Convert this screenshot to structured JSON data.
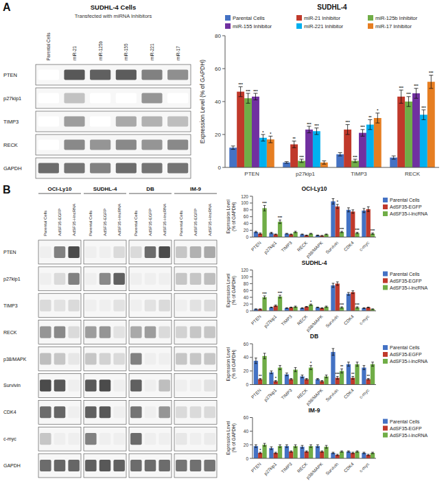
{
  "chart_data": [
    {
      "type": "heatmap",
      "title": "SUDHL-4 Cells",
      "subtitle": "Transfected with miRNA Inhibitors",
      "annotations": [
        "A"
      ],
      "rows": [
        "PTEN",
        "p27kip1",
        "TIMP3",
        "RECK",
        "GAPDH"
      ],
      "columns": [
        "Parental Cells",
        "miR-21",
        "miR-125b",
        "miR-155",
        "miR-221",
        "miR-17"
      ],
      "cells": [
        [
          0.0,
          0.82,
          0.78,
          0.8,
          0.62,
          0.55
        ],
        [
          0.0,
          0.3,
          0.0,
          0.0,
          0.52,
          0.0
        ],
        [
          0.0,
          0.48,
          0.0,
          0.42,
          0.38,
          0.32
        ],
        [
          0.0,
          0.58,
          0.52,
          0.58,
          0.52,
          0.58
        ],
        [
          0.72,
          0.68,
          0.62,
          0.72,
          0.68,
          0.68
        ]
      ]
    },
    {
      "type": "bar",
      "title": "SUDHL-4",
      "y_label": "Expression Level (% of GAPDH)",
      "categories": [
        "PTEN",
        "p27kip1",
        "TIMP3",
        "RECK"
      ],
      "series": [
        {
          "name": "Parental Cells",
          "color": "#4472c4",
          "values": [
            12,
            3,
            8,
            6
          ],
          "errors": [
            1,
            0.5,
            1,
            1
          ]
        },
        {
          "name": "miR-21 Inhibitor",
          "color": "#c0392b",
          "values": [
            46,
            14,
            23,
            43
          ],
          "errors": [
            3,
            2,
            3,
            4
          ],
          "annotations": [
            "***",
            "**",
            "***",
            "***"
          ]
        },
        {
          "name": "miR-125b Inhibitor",
          "color": "#70ad47",
          "values": [
            42,
            4,
            4,
            40
          ],
          "errors": [
            3,
            1,
            1,
            3
          ],
          "annotations": [
            "***",
            "***",
            "***",
            "***"
          ]
        },
        {
          "name": "miR-155 Inhibitor",
          "color": "#7030a0",
          "values": [
            43,
            23,
            21,
            45
          ],
          "errors": [
            2,
            2,
            2,
            3
          ],
          "annotations": [
            "***",
            "***",
            "***",
            "***"
          ]
        },
        {
          "name": "miR-221 Inhibitor",
          "color": "#00b0f0",
          "values": [
            18,
            22,
            26,
            32
          ],
          "errors": [
            2,
            2,
            3,
            3
          ],
          "annotations": [
            "*",
            "***",
            "**",
            "***"
          ]
        },
        {
          "name": "miR-17 Inhibitor",
          "color": "#e67e22",
          "values": [
            17,
            3,
            30,
            52
          ],
          "errors": [
            2,
            1,
            3,
            4
          ],
          "annotations": [
            "*",
            null,
            "*",
            "***"
          ]
        }
      ],
      "ylim": [
        0,
        80
      ],
      "yticks": [
        0,
        20,
        40,
        60,
        80
      ],
      "legend": "upper left",
      "grid": false
    },
    {
      "type": "heatmap",
      "annotations": [
        "B"
      ],
      "column_groups": [
        "OCI-Ly10",
        "SUDHL-4",
        "DB",
        "IM-9"
      ],
      "columns": [
        "Parental Cells",
        "AdSF35-EGFP",
        "AdSF35-i-lncRNA"
      ],
      "rows": [
        "PTEN",
        "p27kip1",
        "TIMP3",
        "RECK",
        "p38/MAPK",
        "Survivin",
        "CDK4",
        "c-myc",
        "GAPDH"
      ],
      "cells": [
        [
          [
            0.08,
            0.62,
            0.88
          ],
          [
            0.08,
            0.08,
            0.18
          ],
          [
            0.18,
            0.72,
            0.88
          ],
          [
            0.28,
            0.38,
            0.42
          ]
        ],
        [
          [
            0.08,
            0.18,
            0.62
          ],
          [
            0.08,
            0.58,
            0.78
          ],
          [
            0.08,
            0.08,
            0.08
          ],
          [
            0.28,
            0.28,
            0.32
          ]
        ],
        [
          [
            0.18,
            0.14,
            0.18
          ],
          [
            0.08,
            0.08,
            0.14
          ],
          [
            0.08,
            0.14,
            0.18
          ],
          [
            0.08,
            0.14,
            0.18
          ]
        ],
        [
          [
            0.52,
            0.58,
            0.18
          ],
          [
            0.48,
            0.52,
            0.14
          ],
          [
            0.42,
            0.48,
            0.18
          ],
          [
            0.22,
            0.28,
            0.28
          ]
        ],
        [
          [
            0.32,
            0.28,
            0.12
          ],
          [
            0.28,
            0.22,
            0.18
          ],
          [
            0.62,
            0.08,
            0.08
          ],
          [
            0.28,
            0.28,
            0.28
          ]
        ],
        [
          [
            0.88,
            0.82,
            0.08
          ],
          [
            0.82,
            0.88,
            0.08
          ],
          [
            0.78,
            0.08,
            0.32
          ],
          [
            0.08,
            0.08,
            0.14
          ]
        ],
        [
          [
            0.72,
            0.75,
            0.08
          ],
          [
            0.78,
            0.82,
            0.08
          ],
          [
            0.68,
            0.08,
            0.52
          ],
          [
            0.18,
            0.18,
            0.18
          ]
        ],
        [
          [
            0.28,
            0.08,
            0.08
          ],
          [
            0.62,
            0.08,
            0.08
          ],
          [
            0.72,
            0.08,
            0.08
          ],
          [
            0.12,
            0.08,
            0.1
          ]
        ],
        [
          [
            0.72,
            0.75,
            0.75
          ],
          [
            0.78,
            0.82,
            0.78
          ],
          [
            0.72,
            0.72,
            0.72
          ],
          [
            0.68,
            0.7,
            0.68
          ]
        ]
      ]
    },
    {
      "type": "bar",
      "title": "OCI-Ly10",
      "y_label": "Expression Level\n(% of GAPDH)",
      "categories": [
        "PTEN",
        "p27kip1",
        "TIMP3",
        "RECK",
        "p38/MAPK",
        "Survivin",
        "CDK4",
        "c-myc"
      ],
      "series": [
        {
          "name": "Parental Cells",
          "color": "#4472c4",
          "values": [
            15,
            12,
            10,
            8,
            5,
            105,
            80,
            78
          ],
          "errors": [
            2,
            2,
            1,
            1,
            1,
            8,
            6,
            6
          ]
        },
        {
          "name": "AdSF35-EGFP",
          "color": "#c0392b",
          "values": [
            10,
            8,
            8,
            5,
            4,
            90,
            75,
            82
          ],
          "errors": [
            2,
            1,
            1,
            1,
            1,
            6,
            5,
            7
          ],
          "annotations": [
            null,
            null,
            null,
            null,
            null,
            "*",
            null,
            null
          ]
        },
        {
          "name": "AdSF35-i-lncRNA",
          "color": "#70ad47",
          "values": [
            85,
            45,
            15,
            10,
            8,
            15,
            12,
            10
          ],
          "errors": [
            8,
            5,
            2,
            1,
            1,
            2,
            2,
            2
          ],
          "annotations": [
            "***",
            "***",
            null,
            null,
            null,
            "***",
            "***",
            "***"
          ]
        }
      ],
      "ylim": [
        0,
        120
      ],
      "yticks": [
        0,
        20,
        40,
        60,
        80,
        100,
        120
      ],
      "legend": "upper right",
      "grid": false
    },
    {
      "type": "bar",
      "title": "SUDHL-4",
      "y_label": "Expression Level\n(% of GAPDH)",
      "categories": [
        "PTEN",
        "p27kip1",
        "TIMP3",
        "RECK",
        "p38/MAPK",
        "Survivin",
        "CDK4",
        "c-myc"
      ],
      "series": [
        {
          "name": "Parental Cells",
          "color": "#4472c4",
          "values": [
            5,
            10,
            8,
            8,
            10,
            75,
            50,
            8
          ],
          "errors": [
            1,
            1,
            1,
            1,
            1,
            6,
            4,
            1
          ]
        },
        {
          "name": "AdSF35-EGFP",
          "color": "#c0392b",
          "values": [
            5,
            15,
            10,
            12,
            8,
            80,
            55,
            10
          ],
          "errors": [
            1,
            2,
            1,
            1,
            1,
            5,
            4,
            1
          ]
        },
        {
          "name": "AdSF35-i-lncRNA",
          "color": "#70ad47",
          "values": [
            40,
            42,
            12,
            18,
            12,
            10,
            10,
            5
          ],
          "errors": [
            4,
            4,
            2,
            2,
            2,
            2,
            2,
            1
          ],
          "annotations": [
            "***",
            "***",
            null,
            "*",
            null,
            "***",
            "***",
            null
          ]
        }
      ],
      "ylim": [
        0,
        120
      ],
      "yticks": [
        0,
        20,
        40,
        60,
        80,
        100,
        120
      ],
      "legend": "upper right",
      "grid": false
    },
    {
      "type": "bar",
      "title": "DB",
      "y_label": "Expression Level\n(% of GAPDH)",
      "categories": [
        "PTEN",
        "p27kip1",
        "TIMP3",
        "RECK",
        "p38/MAPK",
        "Survivin",
        "CDK4",
        "c-myc"
      ],
      "series": [
        {
          "name": "Parental Cells",
          "color": "#4472c4",
          "values": [
            35,
            18,
            15,
            12,
            8,
            48,
            30,
            25
          ],
          "errors": [
            4,
            2,
            2,
            2,
            1,
            5,
            3,
            3
          ]
        },
        {
          "name": "AdSF35-EGFP",
          "color": "#c0392b",
          "values": [
            8,
            5,
            8,
            8,
            5,
            10,
            10,
            8
          ],
          "errors": [
            1,
            1,
            1,
            1,
            1,
            2,
            2,
            1
          ],
          "annotations": [
            "**",
            "*",
            null,
            null,
            null,
            "***",
            "**",
            "**"
          ]
        },
        {
          "name": "AdSF35-i-lncRNA",
          "color": "#70ad47",
          "values": [
            42,
            25,
            22,
            25,
            12,
            20,
            30,
            30
          ],
          "errors": [
            4,
            3,
            3,
            3,
            2,
            3,
            3,
            3
          ],
          "annotations": [
            null,
            null,
            null,
            "*",
            null,
            "**",
            null,
            null
          ]
        }
      ],
      "ylim": [
        0,
        60
      ],
      "yticks": [
        0,
        20,
        40,
        60
      ],
      "legend": "upper right",
      "grid": false
    },
    {
      "type": "bar",
      "title": "IM-9",
      "y_label": "Expression Level\n(% of GAPDH)",
      "categories": [
        "PTEN",
        "p27kip1",
        "TIMP3",
        "RECK",
        "p38/MAPK",
        "Survivin",
        "CDK4",
        "c-myc"
      ],
      "series": [
        {
          "name": "Parental Cells",
          "color": "#4472c4",
          "values": [
            18,
            15,
            18,
            17,
            18,
            8,
            10,
            8
          ],
          "errors": [
            2,
            2,
            2,
            2,
            2,
            1,
            1,
            1
          ]
        },
        {
          "name": "AdSF35-EGFP",
          "color": "#c0392b",
          "values": [
            8,
            8,
            10,
            10,
            10,
            5,
            8,
            5
          ],
          "errors": [
            1,
            1,
            1,
            1,
            1,
            1,
            1,
            1
          ],
          "annotations": [
            "*",
            null,
            null,
            null,
            null,
            null,
            null,
            null
          ]
        },
        {
          "name": "AdSF35-i-lncRNA",
          "color": "#70ad47",
          "values": [
            20,
            18,
            18,
            18,
            17,
            10,
            10,
            8
          ],
          "errors": [
            2,
            2,
            2,
            2,
            2,
            1,
            1,
            1
          ]
        }
      ],
      "ylim": [
        0,
        60
      ],
      "yticks": [
        0,
        20,
        40,
        60
      ],
      "legend": "upper right",
      "grid": false
    }
  ]
}
